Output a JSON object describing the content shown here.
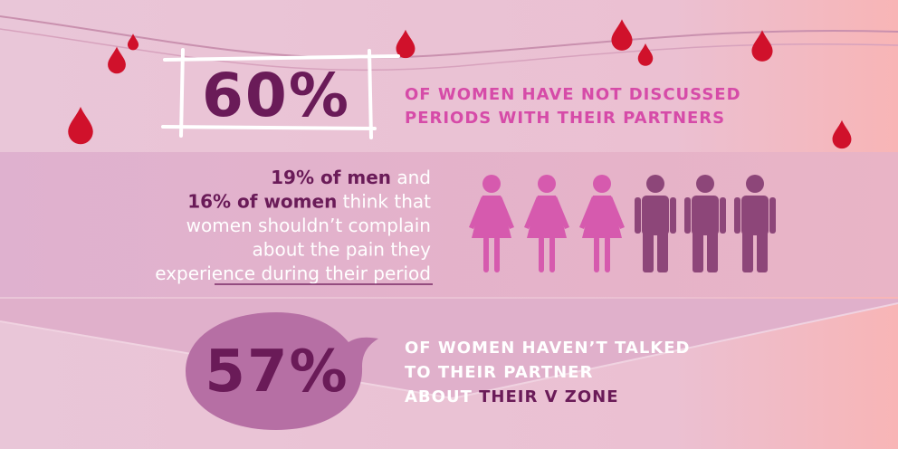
{
  "stat_top": {
    "figure": "60%",
    "lines": [
      "OF WOMEN HAVE NOT DISCUSSED",
      "PERIODS WITH THEIR PARTNERS"
    ]
  },
  "middle": {
    "lines": [
      [
        {
          "text": "19% of men",
          "bold": true
        },
        {
          "text": " and",
          "bold": false
        }
      ],
      [
        {
          "text": "16% of women",
          "bold": true
        },
        {
          "text": " think that",
          "bold": false
        }
      ],
      [
        {
          "text": "women shouldn’t complain",
          "bold": false
        }
      ],
      [
        {
          "text": "about the pain they",
          "bold": false
        }
      ],
      [
        {
          "text": "experience during their period",
          "bold": false
        }
      ]
    ]
  },
  "stat_bottom": {
    "figure": "57%",
    "lines": [
      [
        {
          "text": "OF WOMEN HAVEN’T TALKED",
          "highlight": false
        }
      ],
      [
        {
          "text": "TO THEIR PARTNER",
          "highlight": false
        }
      ],
      [
        {
          "text": "ABOUT ",
          "highlight": false
        },
        {
          "text": "THEIR V ZONE",
          "highlight": true
        }
      ]
    ]
  }
}
